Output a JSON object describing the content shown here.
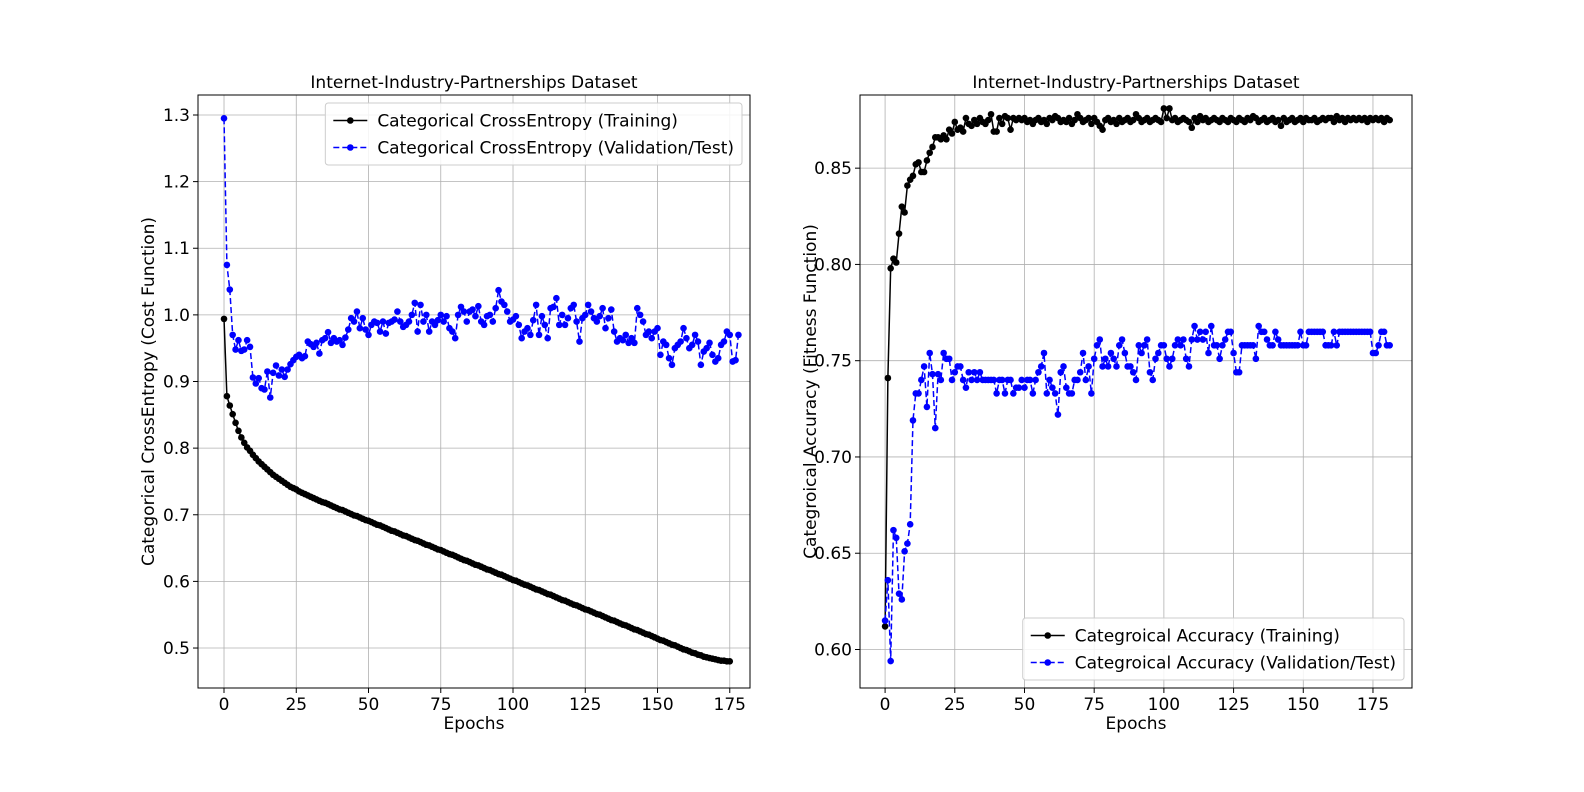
{
  "chart_data": [
    {
      "type": "line",
      "title": "Internet-Industry-Partnerships Dataset",
      "xlabel": "Epochs",
      "ylabel": "Categorical CrossEntropy (Cost Function)",
      "xlim": [
        -9,
        182
      ],
      "ylim": [
        0.44,
        1.33
      ],
      "xticks": [
        0,
        25,
        50,
        75,
        100,
        125,
        150,
        175
      ],
      "yticks": [
        0.5,
        0.6,
        0.7,
        0.8,
        0.9,
        1.0,
        1.1,
        1.2,
        1.3
      ],
      "xtick_labels": [
        "0",
        "25",
        "50",
        "75",
        "100",
        "125",
        "150",
        "175"
      ],
      "ytick_labels": [
        "0.5",
        "0.6",
        "0.7",
        "0.8",
        "0.9",
        "1.0",
        "1.1",
        "1.2",
        "1.3"
      ],
      "grid": true,
      "legend_position": "top-right",
      "series": [
        {
          "name": "Categorical CrossEntropy (Training)",
          "color": "#000000",
          "style": "solid",
          "values": [
            0.994,
            0.878,
            0.864,
            0.851,
            0.838,
            0.826,
            0.816,
            0.808,
            0.801,
            0.796,
            0.79,
            0.785,
            0.78,
            0.776,
            0.772,
            0.768,
            0.764,
            0.76,
            0.757,
            0.754,
            0.751,
            0.748,
            0.745,
            0.742,
            0.74,
            0.738,
            0.735,
            0.733,
            0.731,
            0.729,
            0.727,
            0.725,
            0.723,
            0.721,
            0.719,
            0.718,
            0.716,
            0.714,
            0.712,
            0.71,
            0.708,
            0.707,
            0.705,
            0.703,
            0.701,
            0.699,
            0.698,
            0.696,
            0.694,
            0.692,
            0.691,
            0.689,
            0.687,
            0.685,
            0.684,
            0.682,
            0.68,
            0.678,
            0.676,
            0.675,
            0.673,
            0.671,
            0.669,
            0.668,
            0.666,
            0.664,
            0.662,
            0.661,
            0.659,
            0.657,
            0.655,
            0.654,
            0.652,
            0.65,
            0.648,
            0.647,
            0.645,
            0.643,
            0.641,
            0.64,
            0.638,
            0.636,
            0.634,
            0.632,
            0.631,
            0.629,
            0.627,
            0.625,
            0.624,
            0.622,
            0.62,
            0.618,
            0.617,
            0.615,
            0.613,
            0.611,
            0.61,
            0.608,
            0.606,
            0.604,
            0.602,
            0.601,
            0.599,
            0.597,
            0.595,
            0.594,
            0.592,
            0.59,
            0.588,
            0.587,
            0.585,
            0.583,
            0.581,
            0.58,
            0.578,
            0.576,
            0.574,
            0.572,
            0.571,
            0.569,
            0.567,
            0.565,
            0.564,
            0.562,
            0.56,
            0.558,
            0.557,
            0.555,
            0.553,
            0.551,
            0.55,
            0.548,
            0.546,
            0.544,
            0.542,
            0.541,
            0.539,
            0.537,
            0.535,
            0.534,
            0.532,
            0.53,
            0.528,
            0.527,
            0.525,
            0.523,
            0.521,
            0.52,
            0.518,
            0.516,
            0.514,
            0.512,
            0.511,
            0.509,
            0.507,
            0.505,
            0.504,
            0.502,
            0.5,
            0.498,
            0.497,
            0.495,
            0.493,
            0.492,
            0.49,
            0.489,
            0.487,
            0.486,
            0.485,
            0.484,
            0.483,
            0.482,
            0.481,
            0.481,
            0.48,
            0.48
          ]
        },
        {
          "name": "Categorical CrossEntropy (Validation/Test)",
          "color": "#0000ff",
          "style": "dashed",
          "values": [
            1.295,
            1.075,
            1.038,
            0.97,
            0.948,
            0.962,
            0.946,
            0.948,
            0.962,
            0.952,
            0.906,
            0.897,
            0.905,
            0.89,
            0.888,
            0.915,
            0.876,
            0.913,
            0.924,
            0.909,
            0.918,
            0.907,
            0.918,
            0.926,
            0.932,
            0.937,
            0.94,
            0.935,
            0.938,
            0.96,
            0.956,
            0.952,
            0.958,
            0.942,
            0.962,
            0.965,
            0.974,
            0.958,
            0.965,
            0.96,
            0.962,
            0.955,
            0.966,
            0.978,
            0.995,
            0.99,
            1.005,
            0.98,
            0.995,
            0.978,
            0.97,
            0.985,
            0.99,
            0.988,
            0.975,
            0.99,
            0.972,
            0.988,
            0.99,
            0.993,
            1.005,
            0.99,
            0.982,
            0.985,
            0.99,
            1.0,
            1.018,
            0.975,
            1.015,
            0.99,
            1.0,
            0.975,
            0.99,
            0.985,
            0.992,
            1.0,
            0.99,
            0.998,
            0.98,
            0.975,
            0.965,
            1.0,
            1.012,
            1.005,
            0.99,
            1.005,
            1.008,
            0.998,
            1.013,
            0.99,
            0.985,
            0.998,
            1.0,
            0.99,
            1.01,
            1.037,
            1.02,
            1.015,
            1.005,
            0.99,
            0.993,
            0.998,
            0.985,
            0.965,
            0.975,
            0.98,
            0.97,
            0.992,
            1.015,
            0.97,
            0.998,
            0.985,
            0.965,
            1.01,
            1.012,
            1.025,
            0.985,
            1.0,
            0.985,
            0.995,
            1.01,
            1.015,
            0.99,
            0.96,
            0.995,
            1.0,
            1.015,
            1.005,
            0.995,
            0.99,
            0.998,
            1.01,
            0.98,
            0.995,
            1.008,
            0.975,
            0.96,
            0.965,
            0.962,
            0.97,
            0.958,
            0.965,
            0.958,
            1.01,
            1.0,
            0.99,
            0.97,
            0.975,
            0.965,
            0.975,
            0.98,
            0.94,
            0.96,
            0.955,
            0.935,
            0.925,
            0.95,
            0.955,
            0.96,
            0.98,
            0.965,
            0.95,
            0.955,
            0.97,
            0.96,
            0.925,
            0.945,
            0.95,
            0.958,
            0.94,
            0.93,
            0.935,
            0.955,
            0.96,
            0.975,
            0.97,
            0.93,
            0.932,
            0.97
          ]
        }
      ]
    },
    {
      "type": "line",
      "title": "Internet-Industry-Partnerships Dataset",
      "xlabel": "Epochs",
      "ylabel": "Categroical Accuracy (Fitness Function)",
      "xlim": [
        -9,
        189
      ],
      "ylim": [
        0.58,
        0.888
      ],
      "xticks": [
        0,
        25,
        50,
        75,
        100,
        125,
        150,
        175
      ],
      "yticks": [
        0.6,
        0.65,
        0.7,
        0.75,
        0.8,
        0.85
      ],
      "xtick_labels": [
        "0",
        "25",
        "50",
        "75",
        "100",
        "125",
        "150",
        "175"
      ],
      "ytick_labels": [
        "0.60",
        "0.65",
        "0.70",
        "0.75",
        "0.80",
        "0.85"
      ],
      "grid": true,
      "legend_position": "bottom-right",
      "series": [
        {
          "name": "Categroical Accuracy (Training)",
          "color": "#000000",
          "style": "solid",
          "values": [
            0.612,
            0.741,
            0.798,
            0.803,
            0.801,
            0.816,
            0.83,
            0.827,
            0.841,
            0.844,
            0.846,
            0.852,
            0.853,
            0.848,
            0.848,
            0.854,
            0.858,
            0.861,
            0.866,
            0.866,
            0.865,
            0.867,
            0.865,
            0.87,
            0.868,
            0.874,
            0.87,
            0.871,
            0.869,
            0.876,
            0.873,
            0.872,
            0.875,
            0.873,
            0.876,
            0.874,
            0.873,
            0.875,
            0.878,
            0.869,
            0.869,
            0.876,
            0.873,
            0.877,
            0.876,
            0.87,
            0.876,
            0.875,
            0.876,
            0.875,
            0.876,
            0.874,
            0.875,
            0.873,
            0.875,
            0.876,
            0.874,
            0.875,
            0.873,
            0.876,
            0.875,
            0.877,
            0.876,
            0.874,
            0.875,
            0.874,
            0.876,
            0.873,
            0.875,
            0.878,
            0.876,
            0.874,
            0.875,
            0.876,
            0.873,
            0.876,
            0.874,
            0.872,
            0.87,
            0.875,
            0.876,
            0.874,
            0.875,
            0.873,
            0.876,
            0.874,
            0.875,
            0.876,
            0.874,
            0.875,
            0.878,
            0.876,
            0.874,
            0.875,
            0.876,
            0.874,
            0.875,
            0.876,
            0.875,
            0.874,
            0.881,
            0.876,
            0.881,
            0.875,
            0.876,
            0.874,
            0.875,
            0.876,
            0.875,
            0.874,
            0.871,
            0.876,
            0.874,
            0.877,
            0.875,
            0.876,
            0.874,
            0.875,
            0.876,
            0.875,
            0.874,
            0.876,
            0.875,
            0.874,
            0.876,
            0.875,
            0.874,
            0.876,
            0.875,
            0.874,
            0.876,
            0.875,
            0.877,
            0.876,
            0.874,
            0.875,
            0.876,
            0.874,
            0.875,
            0.876,
            0.874,
            0.875,
            0.872,
            0.876,
            0.874,
            0.875,
            0.876,
            0.874,
            0.875,
            0.876,
            0.874,
            0.876,
            0.875,
            0.875,
            0.876,
            0.874,
            0.875,
            0.876,
            0.875,
            0.876,
            0.876,
            0.874,
            0.877,
            0.875,
            0.876,
            0.874,
            0.876,
            0.875,
            0.876,
            0.875,
            0.876,
            0.875,
            0.876,
            0.874,
            0.876,
            0.875,
            0.876,
            0.875,
            0.876,
            0.874,
            0.876,
            0.875
          ]
        },
        {
          "name": "Categroical Accuracy (Validation/Test)",
          "color": "#0000ff",
          "style": "dashed",
          "values": [
            0.615,
            0.636,
            0.594,
            0.662,
            0.658,
            0.629,
            0.626,
            0.651,
            0.655,
            0.665,
            0.719,
            0.733,
            0.733,
            0.74,
            0.747,
            0.726,
            0.754,
            0.743,
            0.715,
            0.743,
            0.74,
            0.754,
            0.751,
            0.751,
            0.74,
            0.744,
            0.747,
            0.747,
            0.74,
            0.736,
            0.744,
            0.74,
            0.744,
            0.74,
            0.744,
            0.74,
            0.74,
            0.74,
            0.74,
            0.74,
            0.733,
            0.74,
            0.74,
            0.733,
            0.74,
            0.74,
            0.733,
            0.736,
            0.736,
            0.74,
            0.736,
            0.74,
            0.74,
            0.733,
            0.74,
            0.744,
            0.747,
            0.754,
            0.733,
            0.74,
            0.736,
            0.733,
            0.722,
            0.744,
            0.747,
            0.736,
            0.733,
            0.733,
            0.74,
            0.74,
            0.744,
            0.754,
            0.74,
            0.747,
            0.733,
            0.751,
            0.758,
            0.761,
            0.747,
            0.751,
            0.747,
            0.754,
            0.751,
            0.747,
            0.758,
            0.761,
            0.754,
            0.747,
            0.747,
            0.744,
            0.74,
            0.758,
            0.754,
            0.758,
            0.761,
            0.744,
            0.74,
            0.751,
            0.754,
            0.758,
            0.758,
            0.751,
            0.747,
            0.751,
            0.758,
            0.761,
            0.758,
            0.761,
            0.751,
            0.747,
            0.761,
            0.768,
            0.761,
            0.765,
            0.761,
            0.765,
            0.754,
            0.768,
            0.758,
            0.758,
            0.751,
            0.758,
            0.761,
            0.765,
            0.765,
            0.754,
            0.744,
            0.744,
            0.758,
            0.758,
            0.758,
            0.758,
            0.758,
            0.751,
            0.768,
            0.765,
            0.765,
            0.761,
            0.758,
            0.758,
            0.765,
            0.761,
            0.758,
            0.758,
            0.758,
            0.758,
            0.758,
            0.758,
            0.758,
            0.765,
            0.758,
            0.758,
            0.765,
            0.765,
            0.765,
            0.765,
            0.765,
            0.765,
            0.758,
            0.758,
            0.758,
            0.765,
            0.758,
            0.765,
            0.765,
            0.765,
            0.765,
            0.765,
            0.765,
            0.765,
            0.765,
            0.765,
            0.765,
            0.765,
            0.765,
            0.754,
            0.754,
            0.758,
            0.765,
            0.765,
            0.758,
            0.758
          ]
        }
      ]
    }
  ]
}
